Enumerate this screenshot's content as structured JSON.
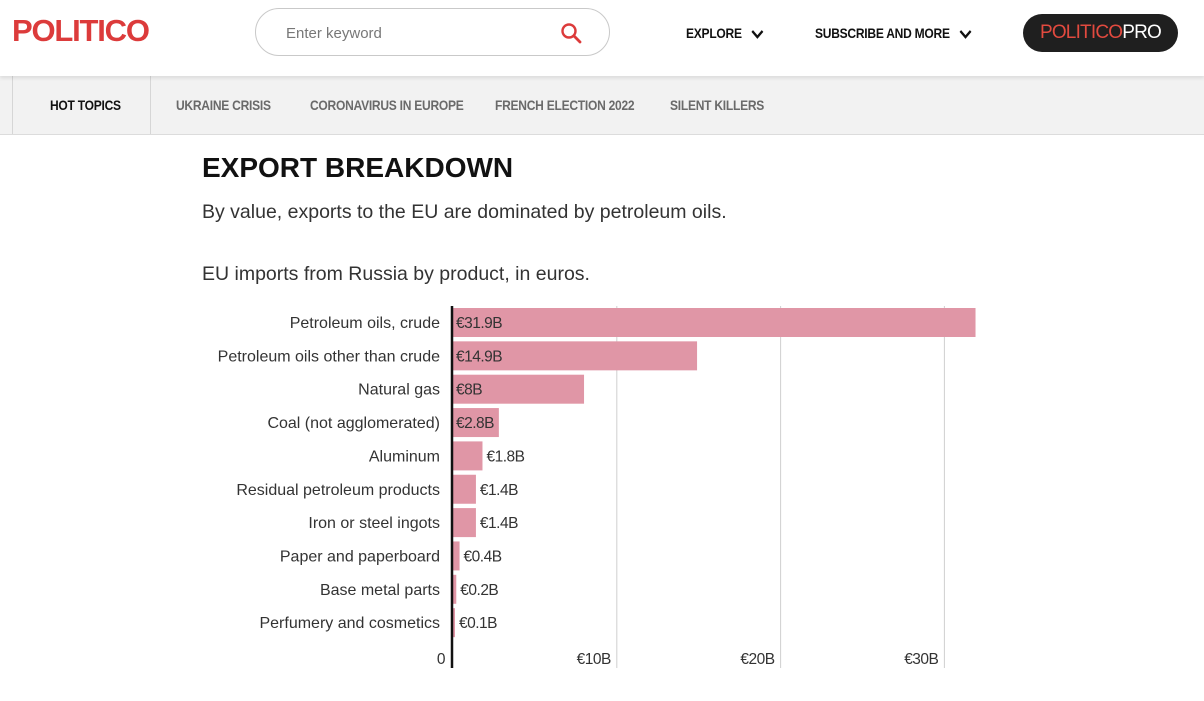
{
  "header": {
    "logo": "POLITICO",
    "search_placeholder": "Enter keyword",
    "nav": [
      {
        "label": "EXPLORE"
      },
      {
        "label": "SUBSCRIBE AND MORE"
      }
    ],
    "pro_badge": {
      "part1": "POLITICO",
      "part2": "PRO"
    }
  },
  "topics": {
    "hot_label": "HOT TOPICS",
    "items": [
      "UKRAINE CRISIS",
      "CORONAVIRUS IN EUROPE",
      "FRENCH ELECTION 2022",
      "SILENT KILLERS"
    ]
  },
  "article": {
    "title": "EXPORT BREAKDOWN",
    "subtitle": "By value, exports to the EU are dominated by petroleum oils.",
    "chart_caption": "EU imports from Russia by product, in euros."
  },
  "colors": {
    "brand": "#dc3b3b",
    "bar": "#e096a6",
    "pro_bg": "#1f1f1f"
  },
  "chart_data": {
    "type": "bar",
    "orientation": "horizontal",
    "title": "EU imports from Russia by product, in euros.",
    "unit": "€ billions",
    "categories": [
      "Petroleum oils, crude",
      "Petroleum oils other than crude",
      "Natural gas",
      "Coal (not agglomerated)",
      "Aluminum",
      "Residual petroleum products",
      "Iron or steel ingots",
      "Paper and paperboard",
      "Base metal parts",
      "Perfumery and cosmetics"
    ],
    "values": [
      31.9,
      14.9,
      8,
      2.8,
      1.8,
      1.4,
      1.4,
      0.4,
      0.2,
      0.1
    ],
    "data_labels": [
      "€31.9B",
      "€14.9B",
      "€8B",
      "€2.8B",
      "€1.8B",
      "€1.4B",
      "€1.4B",
      "€0.4B",
      "€0.2B",
      "€0.1B"
    ],
    "x_ticks": [
      {
        "value": 0,
        "label": "0"
      },
      {
        "value": 10,
        "label": "€10B"
      },
      {
        "value": 20,
        "label": "€20B"
      },
      {
        "value": 30,
        "label": "€30B"
      }
    ],
    "xlim": [
      0,
      32
    ],
    "grid": true,
    "legend": false
  }
}
